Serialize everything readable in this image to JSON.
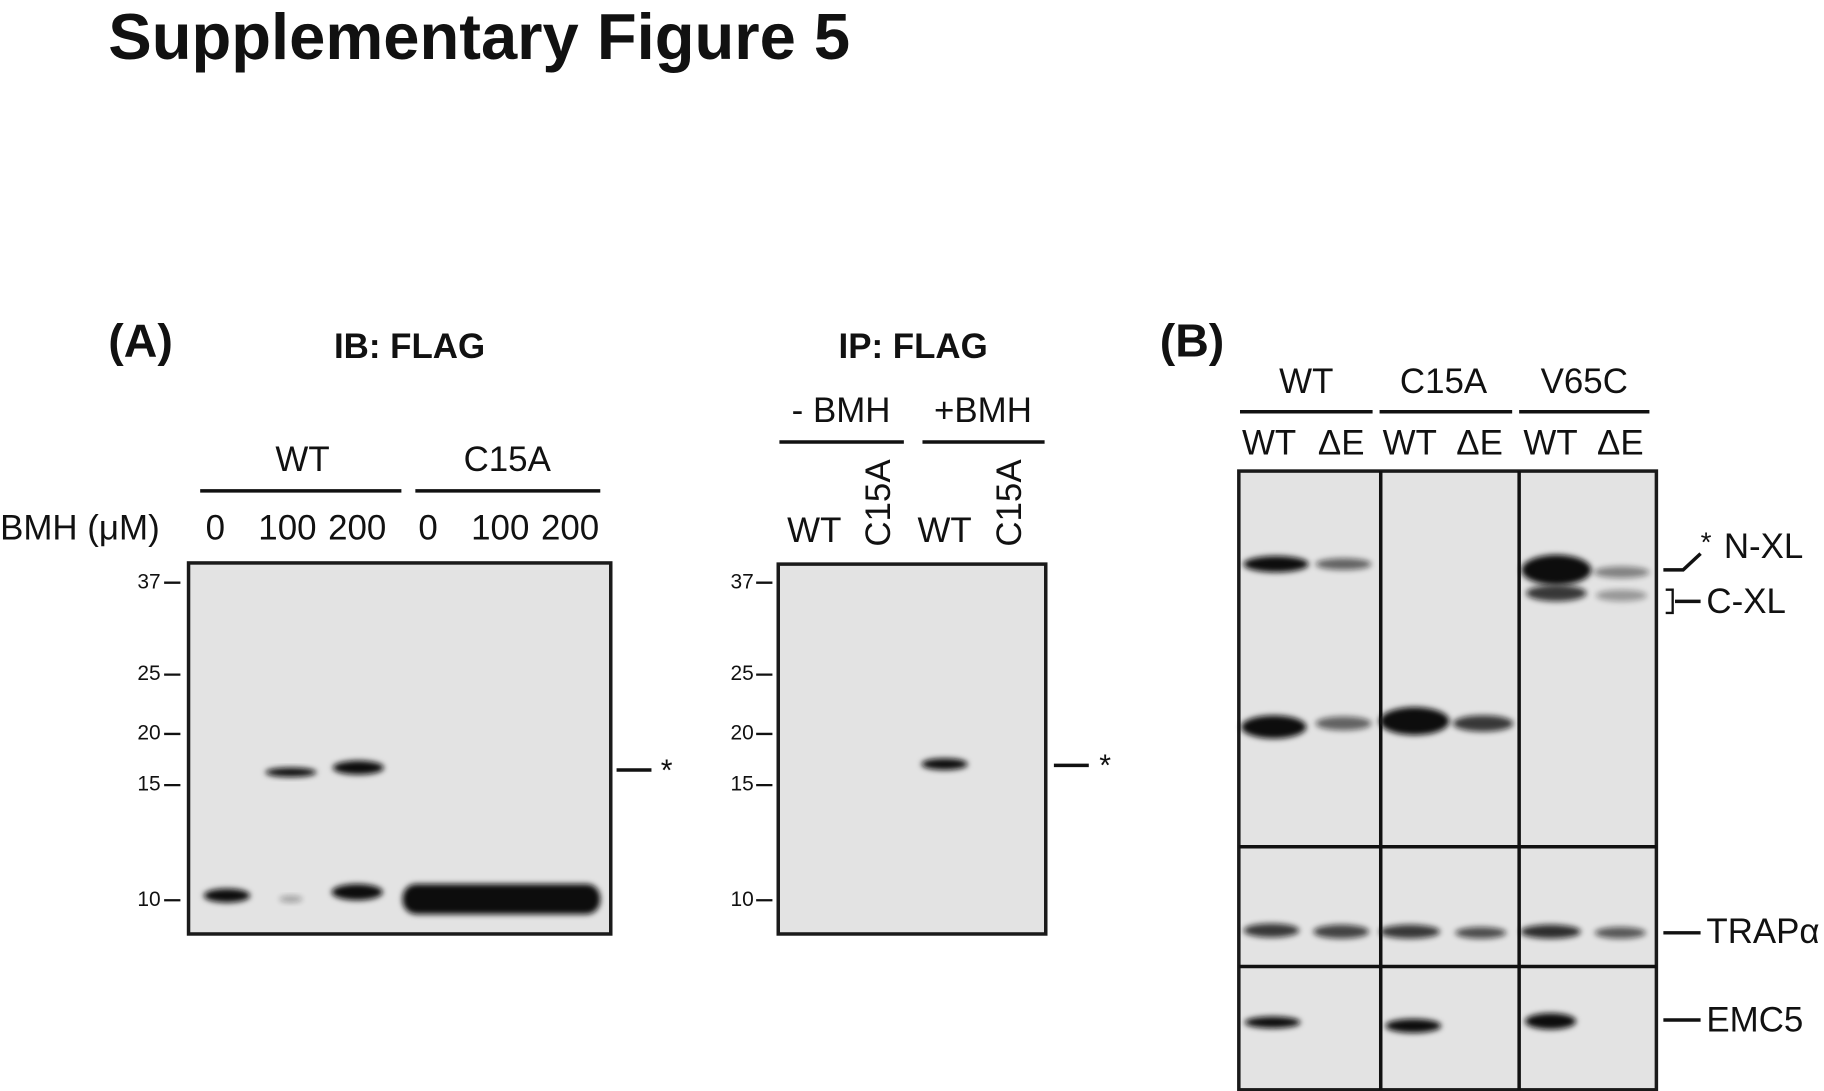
{
  "title": "Supplementary Figure 5",
  "panel_a": {
    "label": "(A)",
    "blot1": {
      "heading": "IB: FLAG",
      "groups": [
        "WT",
        "C15A"
      ],
      "row_label": "BMH (μM)",
      "lanes": [
        "0",
        "100",
        "200",
        "0",
        "100",
        "200"
      ],
      "markers": [
        "37",
        "25",
        "20",
        "15",
        "10"
      ],
      "annotation": "*"
    },
    "blot2": {
      "heading": "IP: FLAG",
      "groups": [
        "- BMH",
        "+BMH"
      ],
      "lanes": [
        "WT",
        "C15A",
        "WT",
        "C15A"
      ],
      "markers": [
        "37",
        "25",
        "20",
        "15",
        "10"
      ],
      "annotation": "*"
    }
  },
  "panel_b": {
    "label": "(B)",
    "groups": [
      "WT",
      "C15A",
      "V65C"
    ],
    "lanes": [
      "WT",
      "ΔE",
      "WT",
      "ΔE",
      "WT",
      "ΔE"
    ],
    "annotations": [
      "*",
      "N-XL",
      "C-XL",
      "TRAPα",
      "EMC5"
    ]
  }
}
